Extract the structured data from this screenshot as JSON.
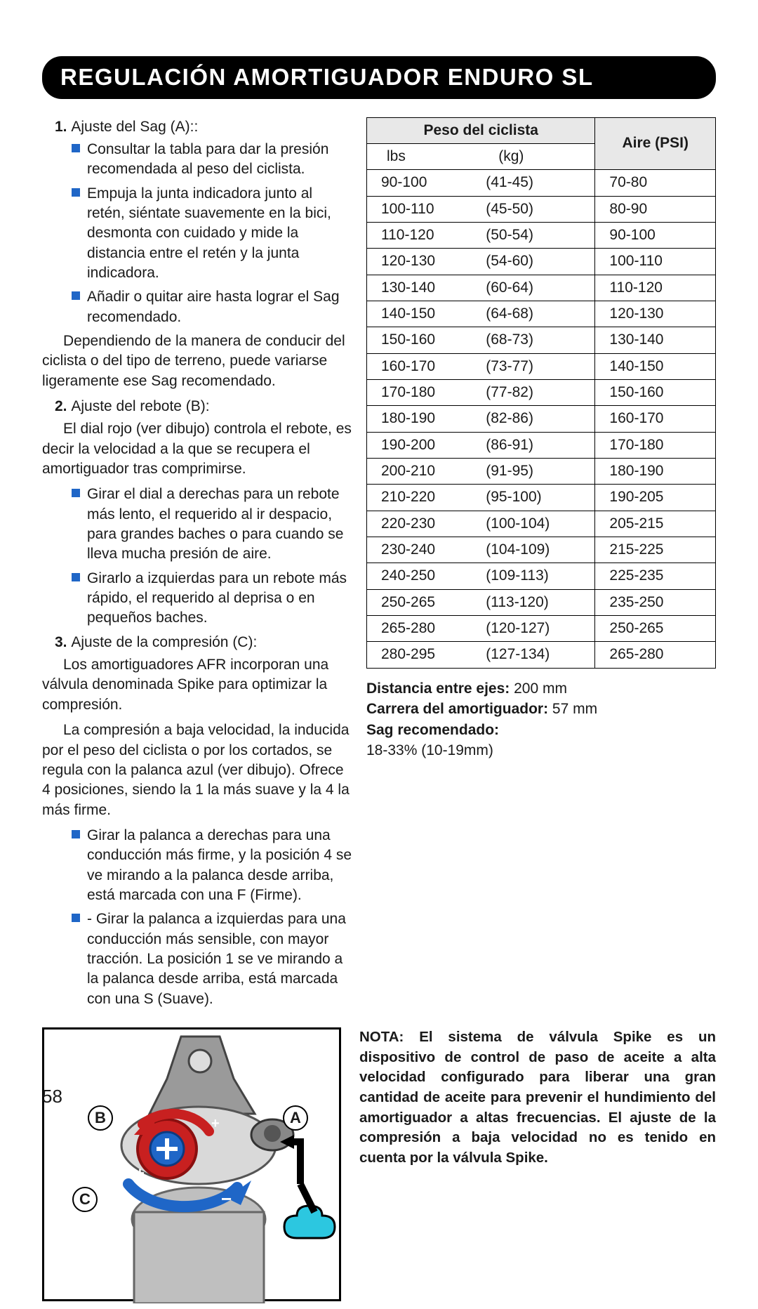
{
  "title": "REGULACIÓN AMORTIGUADOR ENDURO SL",
  "step1": {
    "heading_num": "1.",
    "heading_text": "Ajuste del Sag (A)::",
    "bullets": [
      "Consultar la tabla para dar la presión recomendada al peso del ciclista.",
      "Empuja la junta indicadora junto al retén, siéntate suavemente en la bici, desmonta con cuidado y mide la distancia entre el retén y la junta indicadora.",
      "Añadir o quitar aire hasta lograr el Sag recomendado."
    ],
    "after": "Dependiendo de la manera de conducir del ciclista o del tipo de terreno, puede variarse ligeramente ese Sag recomendado."
  },
  "step2": {
    "heading_num": "2.",
    "heading_text": "Ajuste del rebote (B):",
    "after": "El dial rojo (ver dibujo) controla el rebote, es decir la velocidad a la que se recupera el amortiguador tras comprimirse.",
    "bullets": [
      "Girar el dial a derechas para un rebote más lento, el requerido al ir despacio, para grandes baches o para cuando se lleva mucha presión de aire.",
      "Girarlo a izquierdas para un rebote más rápido, el requerido al deprisa o en pequeños baches."
    ]
  },
  "step3": {
    "heading_num": "3.",
    "heading_text": "Ajuste de la compresión (C):",
    "p1": "Los amortiguadores AFR incorporan una válvula denominada Spike para optimizar la compresión.",
    "p2": "La compresión a baja velocidad, la inducida por el peso del ciclista o por los cortados, se regula con la palanca azul (ver dibujo). Ofrece 4 posiciones, siendo la 1 la más suave y la 4 la más firme.",
    "bullets": [
      "Girar la palanca a derechas para una conducción más firme, y la posición 4 se ve mirando a la palanca desde arriba, está marcada con una F (Firme).",
      "- Girar la palanca a izquierdas para una conducción más sensible, con mayor tracción. La posición 1 se ve mirando a la palanca desde arriba, está marcada con una S (Suave)."
    ]
  },
  "table": {
    "header_weight": "Peso del ciclista",
    "header_air": "Aire (PSI)",
    "sub_lbs": "lbs",
    "sub_kg": "(kg)",
    "rows": [
      {
        "lbs": "90-100",
        "kg": "(41-45)",
        "psi": "70-80"
      },
      {
        "lbs": "100-110",
        "kg": "(45-50)",
        "psi": "80-90"
      },
      {
        "lbs": "110-120",
        "kg": "(50-54)",
        "psi": "90-100"
      },
      {
        "lbs": "120-130",
        "kg": "(54-60)",
        "psi": "100-110"
      },
      {
        "lbs": "130-140",
        "kg": "(60-64)",
        "psi": "110-120"
      },
      {
        "lbs": "140-150",
        "kg": "(64-68)",
        "psi": "120-130"
      },
      {
        "lbs": "150-160",
        "kg": "(68-73)",
        "psi": "130-140"
      },
      {
        "lbs": "160-170",
        "kg": "(73-77)",
        "psi": "140-150"
      },
      {
        "lbs": "170-180",
        "kg": "(77-82)",
        "psi": "150-160"
      },
      {
        "lbs": "180-190",
        "kg": "(82-86)",
        "psi": "160-170"
      },
      {
        "lbs": "190-200",
        "kg": "(86-91)",
        "psi": "170-180"
      },
      {
        "lbs": "200-210",
        "kg": "(91-95)",
        "psi": "180-190"
      },
      {
        "lbs": "210-220",
        "kg": "(95-100)",
        "psi": "190-205"
      },
      {
        "lbs": "220-230",
        "kg": "(100-104)",
        "psi": "205-215"
      },
      {
        "lbs": "230-240",
        "kg": "(104-109)",
        "psi": "215-225"
      },
      {
        "lbs": "240-250",
        "kg": "(109-113)",
        "psi": "225-235"
      },
      {
        "lbs": "250-265",
        "kg": "(113-120)",
        "psi": "235-250"
      },
      {
        "lbs": "265-280",
        "kg": "(120-127)",
        "psi": "250-265"
      },
      {
        "lbs": "280-295",
        "kg": "(127-134)",
        "psi": "265-280"
      }
    ]
  },
  "specs": {
    "wheelbase_label": "Distancia entre ejes:",
    "wheelbase_value": " 200 mm",
    "stroke_label": "Carrera del amortiguador:",
    "stroke_value": " 57 mm",
    "sag_label": "Sag recomendado:",
    "sag_value": "18-33% (10-19mm)"
  },
  "diagram": {
    "label_a": "A",
    "label_b": "B",
    "label_c": "C"
  },
  "note": "NOTA: El sistema de válvula Spike es un dispositivo de control de paso de aceite a alta velocidad configurado para liberar una gran cantidad de aceite para prevenir el hundimiento del amortiguador a altas frecuencias. El ajuste de la compresión a baja velocidad no es tenido en cuenta por la válvula Spike.",
  "page_number": "58",
  "colors": {
    "bullet": "#1f66c7",
    "red": "#c82020",
    "blue": "#1f66c7",
    "cyan": "#2cc7e0"
  }
}
